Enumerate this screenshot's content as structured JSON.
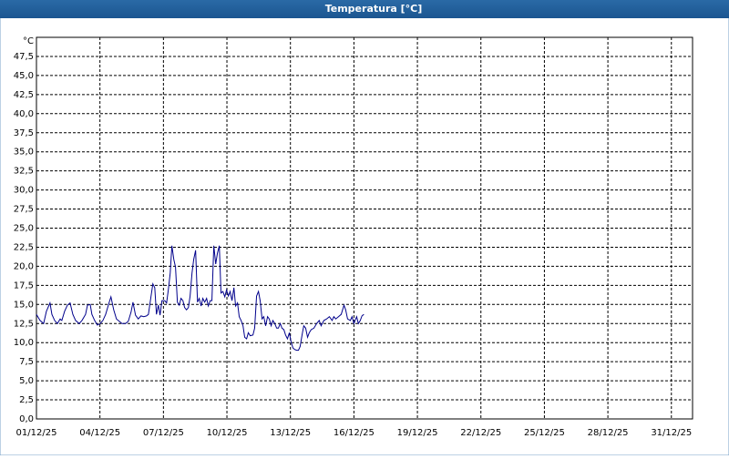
{
  "chart_data": {
    "type": "line",
    "title": "Temperatura [°C]",
    "y_unit": "°C",
    "x": [
      0,
      0.17,
      0.34,
      0.47,
      0.64,
      0.73,
      0.86,
      0.99,
      1.12,
      1.2,
      1.33,
      1.46,
      1.59,
      1.72,
      1.85,
      2.02,
      2.15,
      2.32,
      2.41,
      2.54,
      2.62,
      2.75,
      2.88,
      3.01,
      3.14,
      3.27,
      3.44,
      3.52,
      3.65,
      3.78,
      3.91,
      4.04,
      4.21,
      4.34,
      4.47,
      4.56,
      4.68,
      4.81,
      4.94,
      5.07,
      5.2,
      5.29,
      5.41,
      5.5,
      5.59,
      5.67,
      5.76,
      5.84,
      5.93,
      6.06,
      6.15,
      6.23,
      6.32,
      6.4,
      6.49,
      6.57,
      6.66,
      6.75,
      6.83,
      6.92,
      7,
      7.09,
      7.18,
      7.26,
      7.35,
      7.43,
      7.52,
      7.61,
      7.69,
      7.78,
      7.86,
      7.95,
      8.04,
      8.12,
      8.21,
      8.29,
      8.38,
      8.47,
      8.55,
      8.64,
      8.72,
      8.81,
      8.9,
      8.98,
      9.07,
      9.15,
      9.24,
      9.33,
      9.41,
      9.5,
      9.58,
      9.67,
      9.76,
      9.84,
      9.93,
      10.01,
      10.1,
      10.23,
      10.31,
      10.4,
      10.49,
      10.57,
      10.66,
      10.74,
      10.83,
      10.92,
      11,
      11.09,
      11.17,
      11.26,
      11.35,
      11.43,
      11.52,
      11.6,
      11.69,
      11.77,
      11.86,
      11.95,
      12.03,
      12.12,
      12.2,
      12.29,
      12.38,
      12.46,
      12.55,
      12.63,
      12.72,
      12.81,
      12.89,
      12.98,
      13.11,
      13.24,
      13.36,
      13.45,
      13.58,
      13.71,
      13.84,
      13.97,
      14.05,
      14.14,
      14.27,
      14.4,
      14.53,
      14.61,
      14.7,
      14.83,
      14.91,
      15,
      15.13,
      15.21,
      15.3,
      15.38,
      15.47
    ],
    "values": [
      13.7,
      12.9,
      12.5,
      14.1,
      15.2,
      13.7,
      12.9,
      12.5,
      13.1,
      12.9,
      14.1,
      14.9,
      15.2,
      13.7,
      12.9,
      12.5,
      12.9,
      13.7,
      14.9,
      15,
      13.7,
      12.9,
      12.3,
      12.5,
      12.9,
      13.7,
      15.3,
      16,
      14.3,
      13.1,
      12.8,
      12.5,
      12.5,
      12.8,
      14,
      15.3,
      13.6,
      13.1,
      13.5,
      13.4,
      13.5,
      13.7,
      16,
      17.7,
      17.2,
      13.7,
      14.9,
      13.6,
      15.5,
      15.5,
      15.2,
      16.9,
      19.1,
      22.7,
      20.9,
      19.9,
      15.3,
      14.9,
      15.8,
      15.5,
      14.6,
      14.3,
      14.6,
      16.1,
      19.1,
      20.9,
      22.1,
      15.3,
      15.8,
      14.8,
      15.8,
      15.3,
      15.8,
      14.8,
      15.5,
      15.5,
      22.7,
      20.3,
      21.7,
      22.7,
      16.5,
      16.7,
      16,
      16.9,
      16.1,
      16.7,
      15.5,
      17.2,
      14.8,
      15.2,
      13.4,
      12.9,
      12.2,
      10.7,
      10.5,
      11.3,
      10.9,
      11,
      11.9,
      16.1,
      16.7,
      15.5,
      13.1,
      13.4,
      12.2,
      13.4,
      13.1,
      12.2,
      12.9,
      12.5,
      11.9,
      11.9,
      12.5,
      11.9,
      11.7,
      11,
      10.5,
      11.3,
      10.1,
      9.3,
      9.1,
      9,
      9,
      9.5,
      11,
      12.2,
      11.9,
      10.7,
      11.3,
      11.7,
      11.9,
      12.5,
      12.9,
      12.2,
      12.9,
      13.1,
      13.4,
      12.9,
      13.4,
      13.1,
      13.4,
      13.7,
      14.9,
      14.3,
      13.1,
      12.9,
      13.4,
      12.5,
      13.4,
      12.5,
      12.9,
      13.5,
      13.7
    ],
    "color": "#00008b",
    "xlim": [
      0,
      31
    ],
    "xticks": [
      {
        "value": 0,
        "label": "01/12/25"
      },
      {
        "value": 3,
        "label": "04/12/25"
      },
      {
        "value": 6,
        "label": "07/12/25"
      },
      {
        "value": 9,
        "label": "10/12/25"
      },
      {
        "value": 12,
        "label": "13/12/25"
      },
      {
        "value": 15,
        "label": "16/12/25"
      },
      {
        "value": 18,
        "label": "19/12/25"
      },
      {
        "value": 21,
        "label": "22/12/25"
      },
      {
        "value": 24,
        "label": "25/12/25"
      },
      {
        "value": 27,
        "label": "28/12/25"
      },
      {
        "value": 30,
        "label": "31/12/25"
      }
    ],
    "ylim": [
      0,
      50
    ],
    "yticks": [
      {
        "value": 0,
        "label": "0,0"
      },
      {
        "value": 2.5,
        "label": "2,5"
      },
      {
        "value": 5,
        "label": "5,0"
      },
      {
        "value": 7.5,
        "label": "7,5"
      },
      {
        "value": 10,
        "label": "10,0"
      },
      {
        "value": 12.5,
        "label": "12,5"
      },
      {
        "value": 15,
        "label": "15,0"
      },
      {
        "value": 17.5,
        "label": "17,5"
      },
      {
        "value": 20,
        "label": "20,0"
      },
      {
        "value": 22.5,
        "label": "22,5"
      },
      {
        "value": 25,
        "label": "25,0"
      },
      {
        "value": 27.5,
        "label": "27,5"
      },
      {
        "value": 30,
        "label": "30,0"
      },
      {
        "value": 32.5,
        "label": "32,5"
      },
      {
        "value": 35,
        "label": "35,0"
      },
      {
        "value": 37.5,
        "label": "37,5"
      },
      {
        "value": 40,
        "label": "40,0"
      },
      {
        "value": 42.5,
        "label": "42,5"
      },
      {
        "value": 45,
        "label": "45,0"
      },
      {
        "value": 47.5,
        "label": "47,5"
      }
    ],
    "grid": true
  }
}
